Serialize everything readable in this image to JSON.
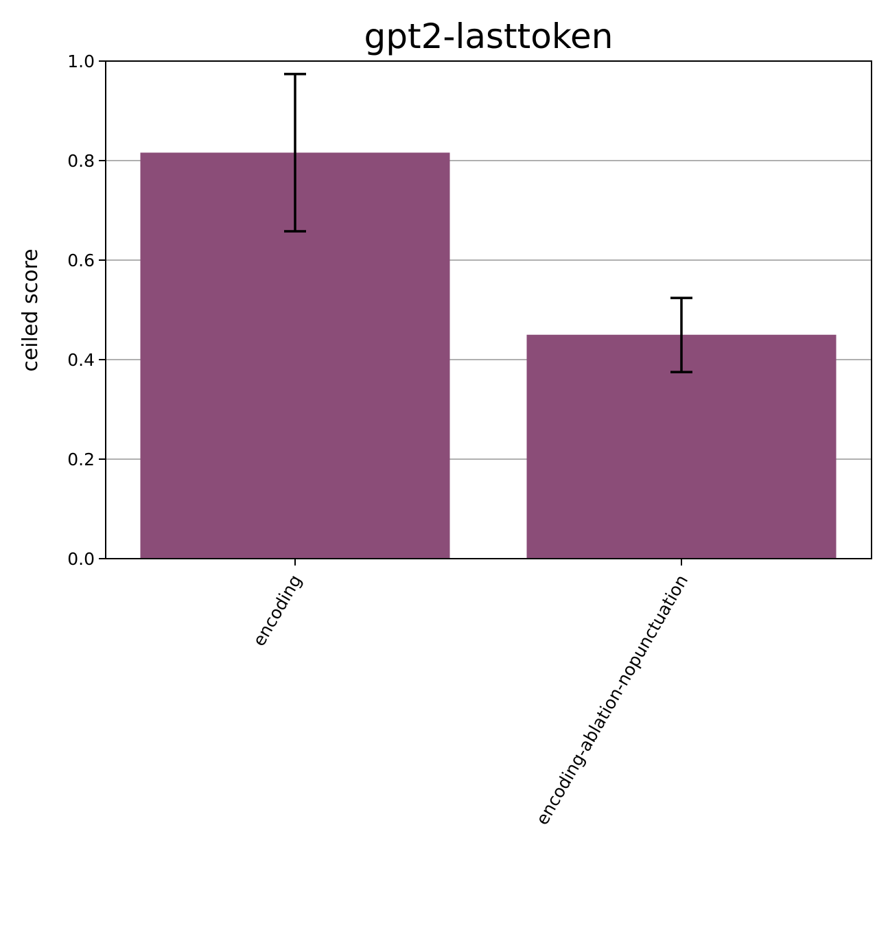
{
  "chart_data": {
    "type": "bar",
    "title": "gpt2-lasttoken",
    "xlabel": "",
    "ylabel": "ceiled score",
    "categories": [
      "encoding",
      "encoding-ablation-nopunctuation"
    ],
    "values": [
      0.816,
      0.45
    ],
    "error_low": [
      0.658,
      0.375
    ],
    "error_high": [
      0.974,
      0.524
    ],
    "ylim": [
      0,
      1.0
    ],
    "yticks": [
      0.0,
      0.2,
      0.4,
      0.6,
      0.8,
      1.0
    ],
    "ytick_labels": [
      "0.0",
      "0.2",
      "0.4",
      "0.6",
      "0.8",
      "1.0"
    ],
    "grid": "y",
    "bar_color": "#8b4d78",
    "error_color": "#000000",
    "grid_color": "#b0b0b0"
  }
}
